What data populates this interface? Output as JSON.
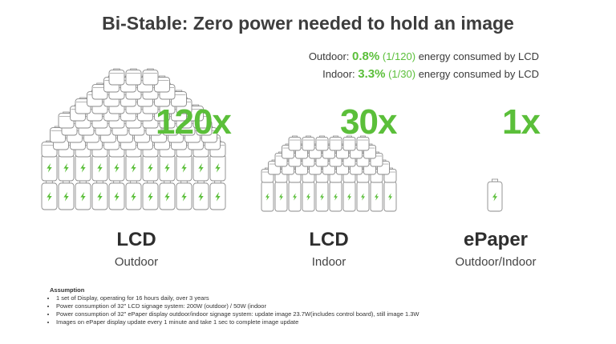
{
  "title": "Bi-Stable: Zero power needed to hold an image",
  "stats": [
    {
      "label": "Outdoor:",
      "pct": "0.8%",
      "frac": "(1/120)",
      "rest": "energy consumed by LCD"
    },
    {
      "label": "Indoor:",
      "pct": "3.3%",
      "frac": "(1/30)",
      "rest": "energy consumed by LCD"
    }
  ],
  "columns": [
    {
      "multiplier": "120x",
      "name": "LCD",
      "condition": "Outdoor",
      "batteries": 120
    },
    {
      "multiplier": "30x",
      "name": "LCD",
      "condition": "Indoor",
      "batteries": 30
    },
    {
      "multiplier": "1x",
      "name": "ePaper",
      "condition": "Outdoor/Indoor",
      "batteries": 1
    }
  ],
  "assumption": {
    "heading": "Assumption",
    "items": [
      "1 set of Display, operating for 16 hours daily, over 3 years",
      "Power consumption of 32\" LCD signage system: 200W (outdoor) / 50W (indoor",
      "Power consumption of 32\" ePaper display outdoor/indoor signage system: update image 23.7W(includes control board), still image 1.3W",
      "Images on ePaper display update every 1 minute and take 1 sec to complete image update"
    ]
  },
  "colors": {
    "accent": "#5bbf3a",
    "outline": "#8a8a8a"
  }
}
